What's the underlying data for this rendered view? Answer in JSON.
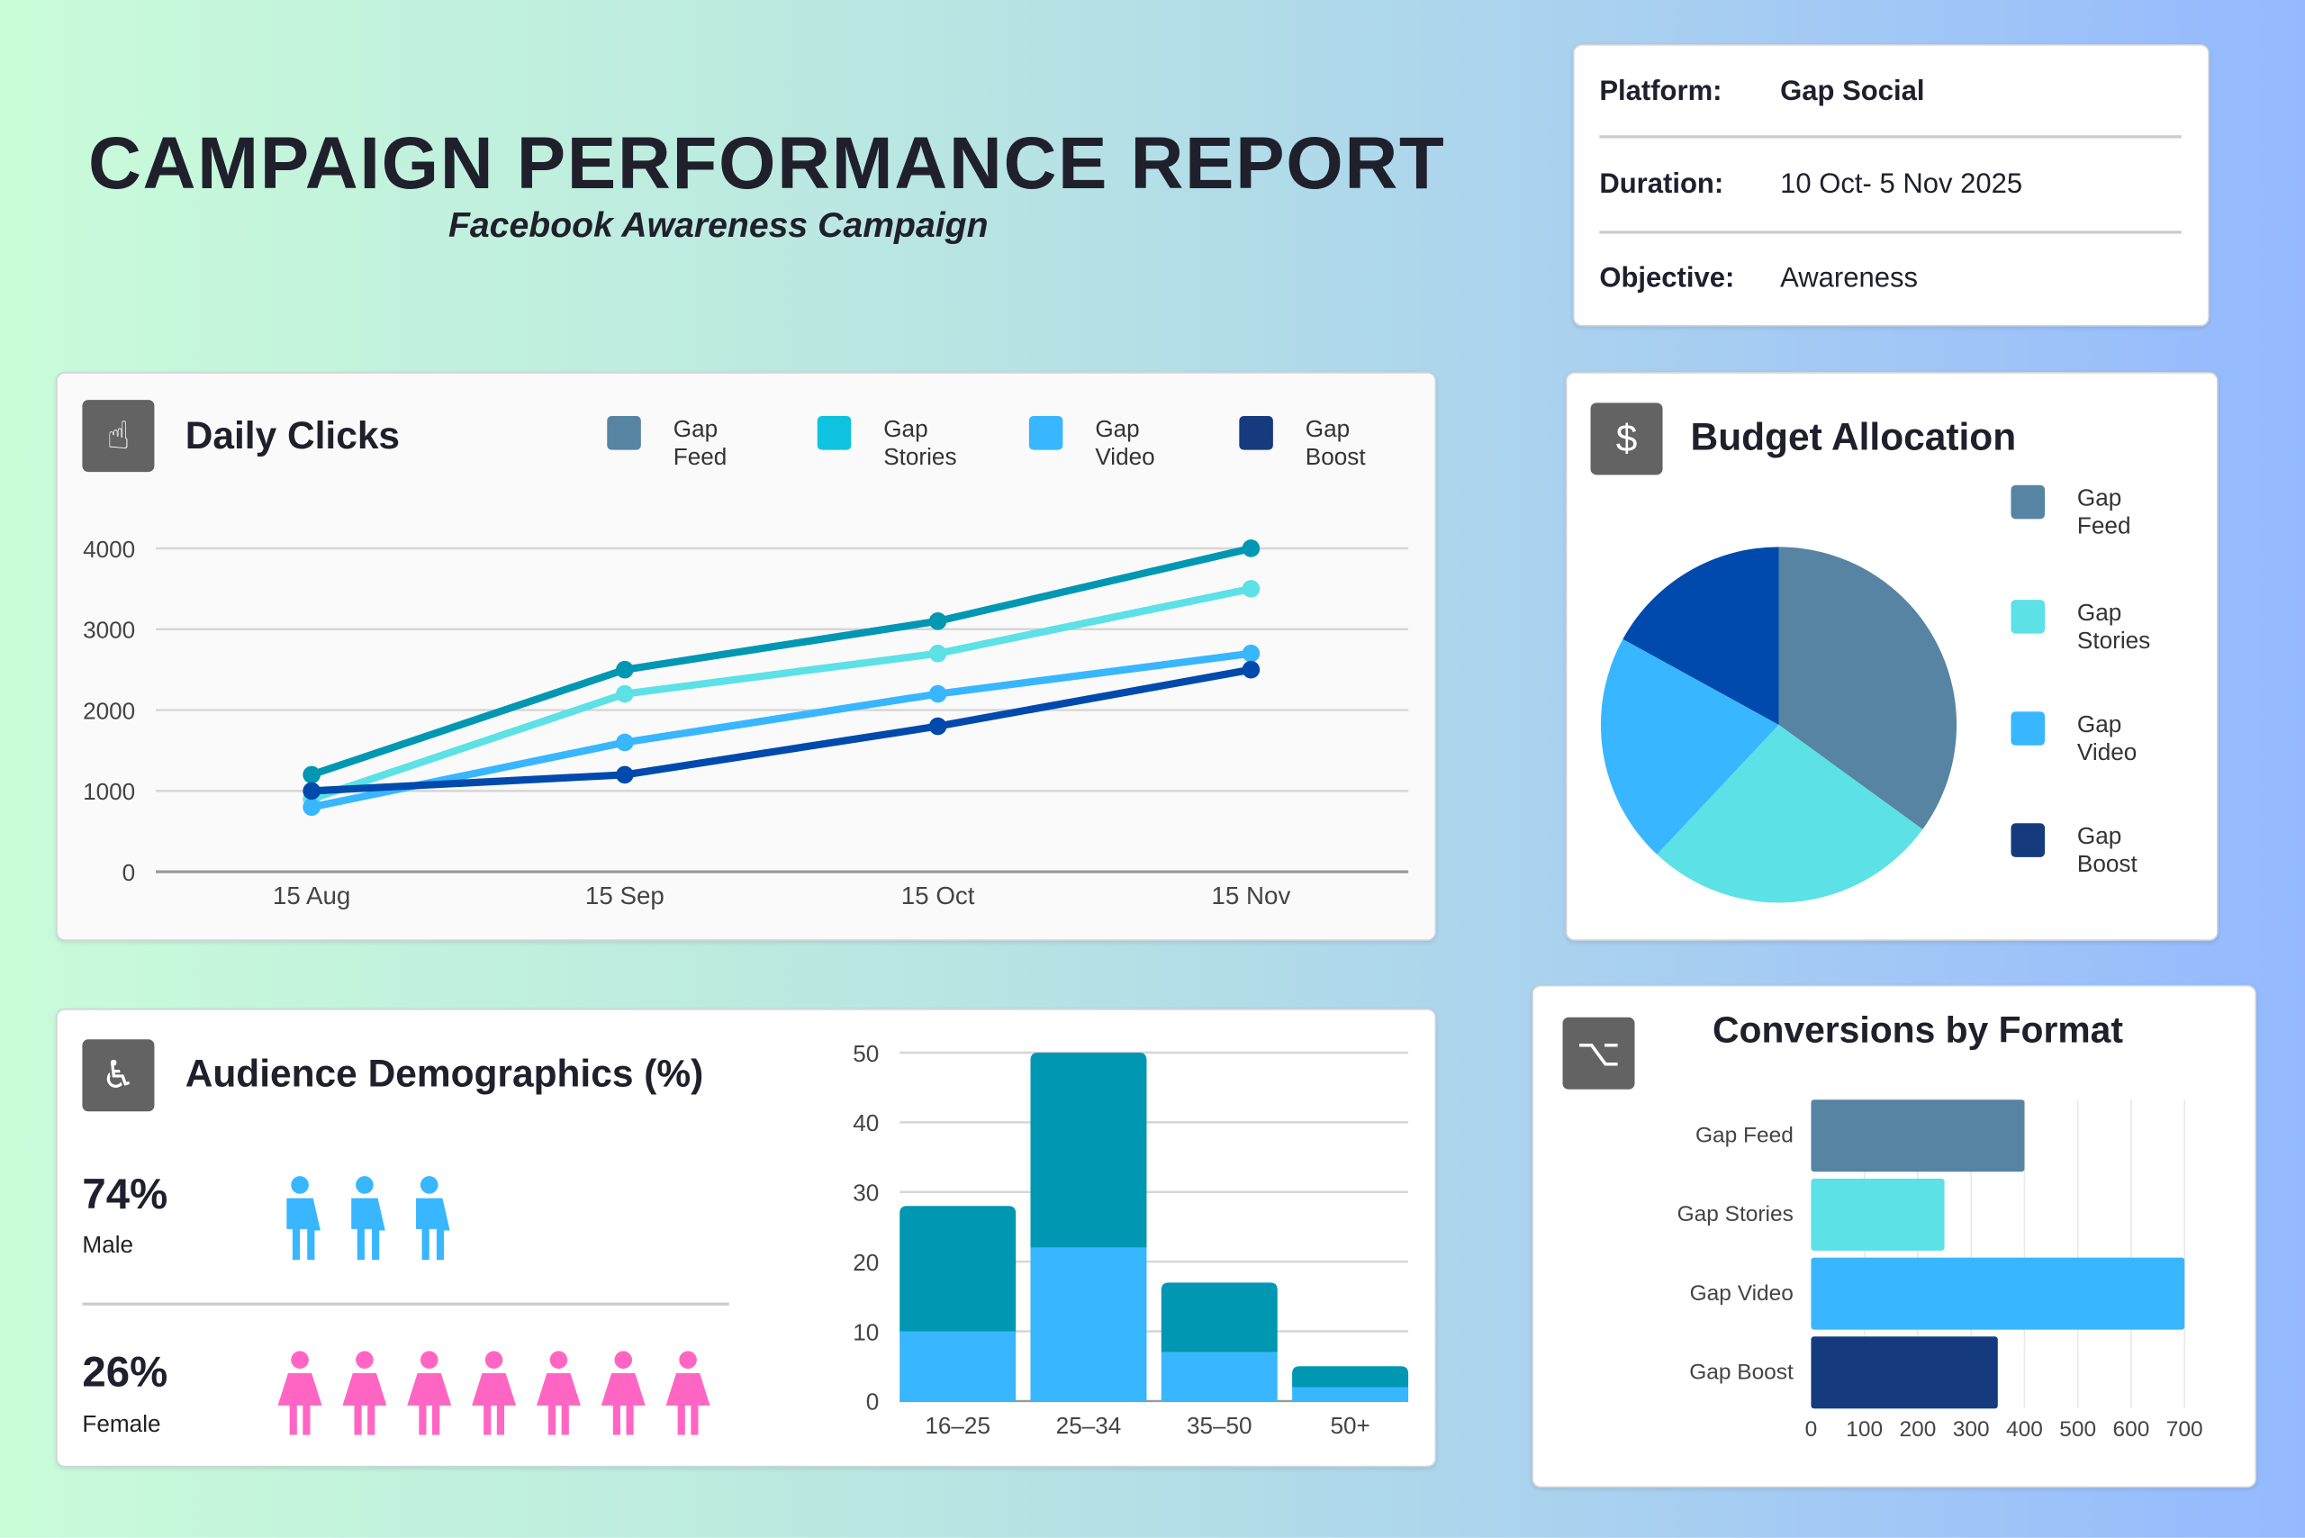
{
  "header": {
    "title": "CAMPAIGN PERFORMANCE REPORT",
    "subtitle": "Facebook Awareness Campaign"
  },
  "info": {
    "platform_label": "Platform:",
    "platform": "Gap Social",
    "duration_label": "Duration:",
    "duration": "10 Oct- 5 Nov 2025",
    "objective_label": "Objective:",
    "objective": "Awareness"
  },
  "colors": {
    "feed": "#5784a3",
    "stories": "#0fc2e0",
    "stories_line": "#5ce1e6",
    "video": "#38b6ff",
    "boost": "#163a7e",
    "feed_line": "#0097b2",
    "boost_line": "#004aad",
    "female": "#ff66c4"
  },
  "daily_clicks": {
    "title": "Daily Clicks",
    "icon": "hand-pointer-icon",
    "legend": [
      {
        "l1": "Gap",
        "l2": "Feed"
      },
      {
        "l1": "Gap",
        "l2": "Stories"
      },
      {
        "l1": "Gap",
        "l2": "Video"
      },
      {
        "l1": "Gap",
        "l2": "Boost"
      }
    ]
  },
  "budget": {
    "title": "Budget Allocation",
    "icon": "dollar-refresh-icon",
    "legend": [
      {
        "l1": "Gap",
        "l2": "Feed"
      },
      {
        "l1": "Gap",
        "l2": "Stories"
      },
      {
        "l1": "Gap",
        "l2": "Video"
      },
      {
        "l1": "Gap",
        "l2": "Boost"
      }
    ]
  },
  "audience": {
    "title": "Audience Demographics (%)",
    "icon": "accessibility-icon",
    "male_pct": "74%",
    "male_label": "Male",
    "female_pct": "26%",
    "female_label": "Female",
    "male_icons": 3,
    "female_icons": 7
  },
  "conversions": {
    "title": "Conversions by Format",
    "icon": "flow-icon"
  },
  "chart_data": [
    {
      "type": "line",
      "title": "Daily Clicks",
      "x": [
        "15 Aug",
        "15 Sep",
        "15 Oct",
        "15 Nov"
      ],
      "ylim": [
        0,
        4000
      ],
      "yticks": [
        0,
        1000,
        2000,
        3000,
        4000
      ],
      "grid": true,
      "legend": "top",
      "series": [
        {
          "name": "Gap Feed",
          "values": [
            1200,
            2500,
            3100,
            4000
          ]
        },
        {
          "name": "Gap Stories",
          "values": [
            900,
            2200,
            2700,
            3500
          ]
        },
        {
          "name": "Gap Video",
          "values": [
            800,
            1600,
            2200,
            2700
          ]
        },
        {
          "name": "Gap Boost",
          "values": [
            1000,
            1200,
            1800,
            2500
          ]
        }
      ]
    },
    {
      "type": "pie",
      "title": "Budget Allocation",
      "categories": [
        "Gap Feed",
        "Gap Stories",
        "Gap Video",
        "Gap Boost"
      ],
      "values": [
        35,
        27,
        21,
        17
      ],
      "legend": "right"
    },
    {
      "type": "bar",
      "stacked": true,
      "categories": [
        "16–25",
        "25–34",
        "35–50",
        "50+"
      ],
      "ylim": [
        0,
        50
      ],
      "yticks": [
        0,
        10,
        20,
        30,
        40,
        50
      ],
      "grid": true,
      "series": [
        {
          "values": [
            10,
            22,
            7,
            2
          ]
        },
        {
          "values": [
            18,
            28,
            10,
            3
          ]
        }
      ]
    },
    {
      "type": "bar",
      "orientation": "horizontal",
      "title": "Conversions by Format",
      "categories": [
        "Gap Feed",
        "Gap Stories",
        "Gap Video",
        "Gap Boost"
      ],
      "values": [
        400,
        250,
        700,
        350
      ],
      "xlim": [
        0,
        700
      ],
      "xticks": [
        0,
        100,
        200,
        300,
        400,
        500,
        600,
        700
      ],
      "grid": true
    }
  ]
}
